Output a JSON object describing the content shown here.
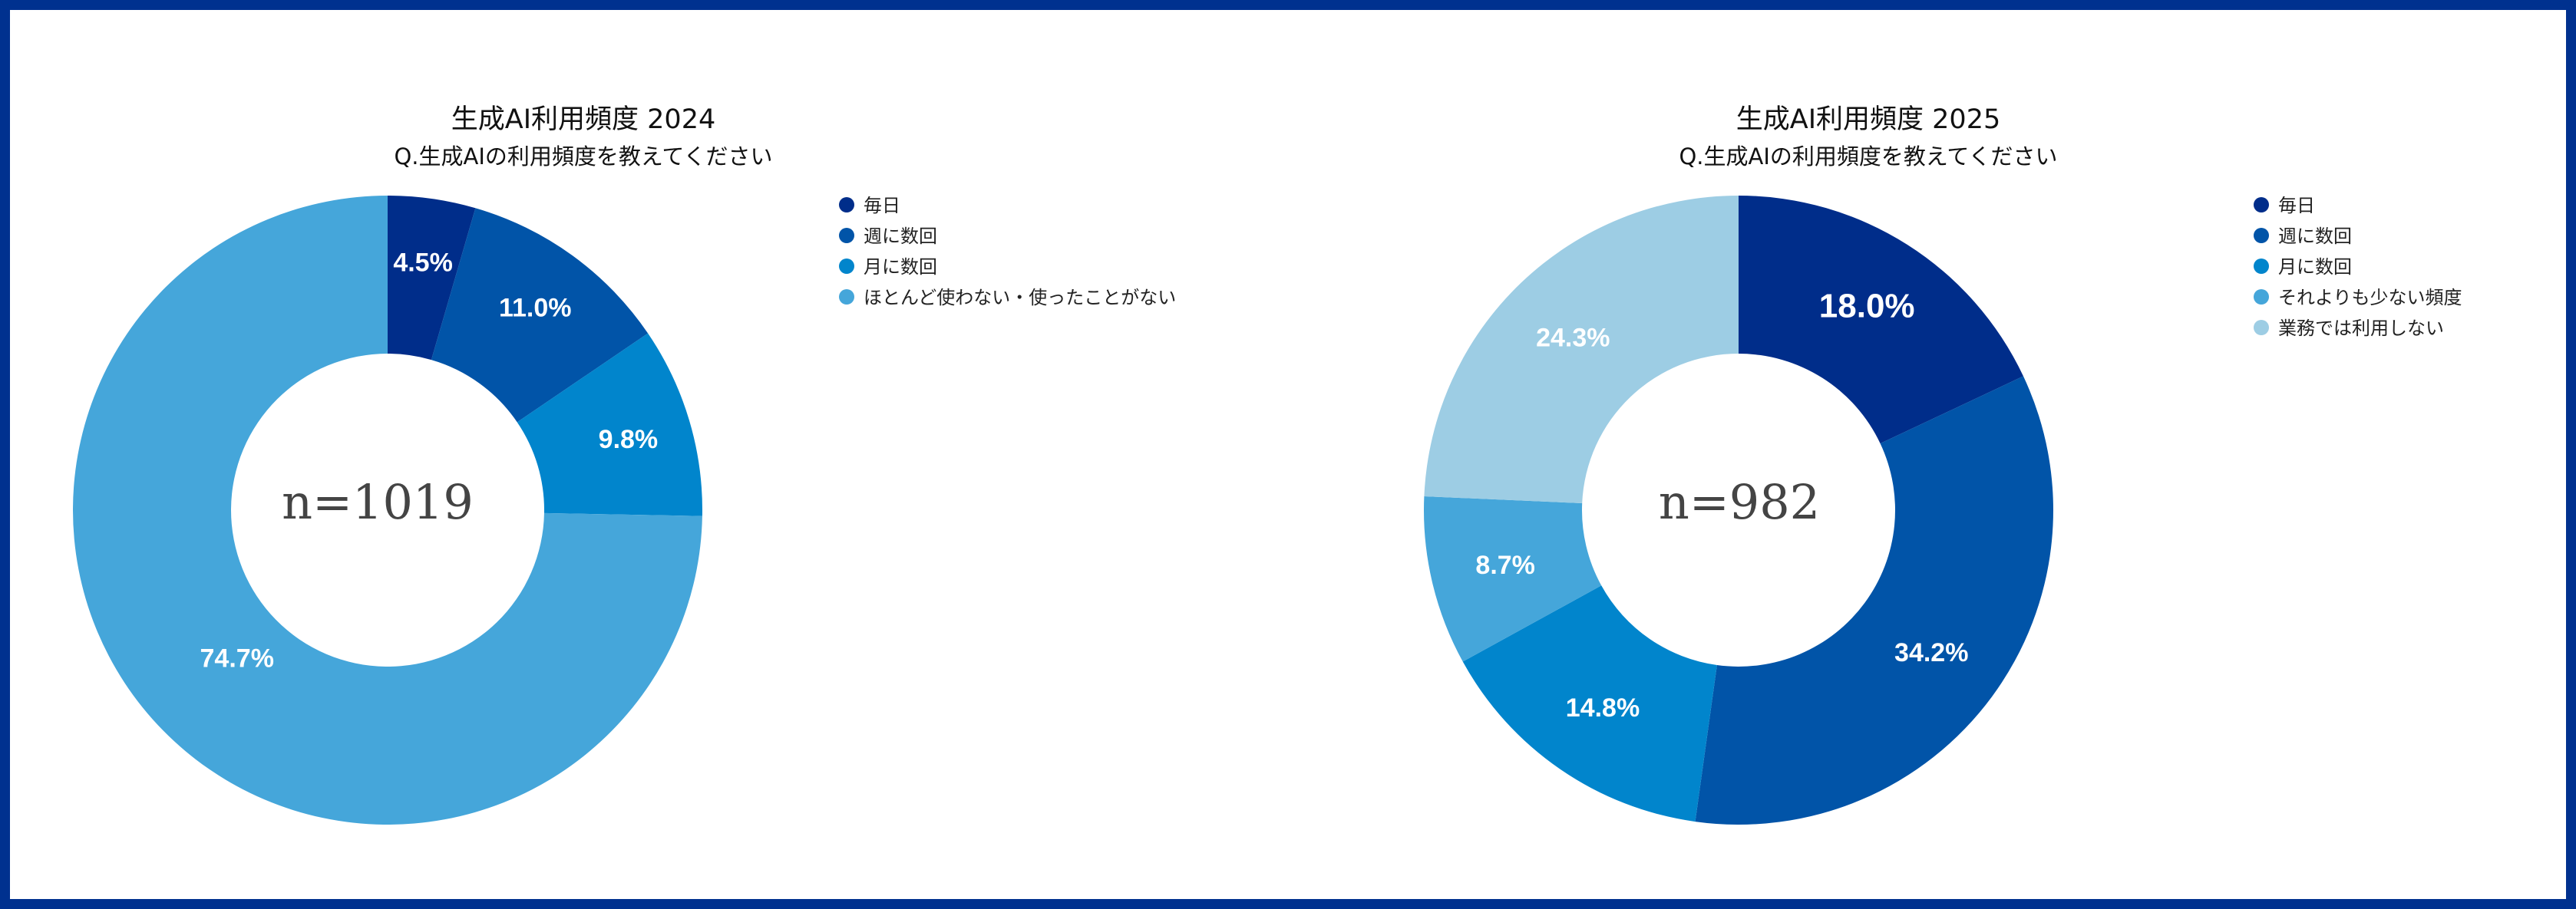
{
  "chart_data": [
    {
      "type": "pie",
      "donut": true,
      "title": "生成AI利用頻度 2024",
      "subtitle": "Q.生成AIの利用頻度を教えてください",
      "center_text": "n=1019",
      "categories": [
        "毎日",
        "週に数回",
        "月に数回",
        "ほとんど使わない・使ったことがない"
      ],
      "values": [
        4.5,
        11.0,
        9.8,
        74.7
      ],
      "value_labels": [
        "4.5%",
        "11.0%",
        "9.8%",
        "74.7%"
      ],
      "colors": [
        "#002d8a",
        "#0154a8",
        "#0185cc",
        "#45a6da"
      ],
      "legend_position": "right"
    },
    {
      "type": "pie",
      "donut": true,
      "title": "生成AI利用頻度 2025",
      "subtitle": "Q.生成AIの利用頻度を教えてください",
      "center_text": "n=982",
      "categories": [
        "毎日",
        "週に数回",
        "月に数回",
        "それよりも少ない頻度",
        "業務では利用しない"
      ],
      "values": [
        18.0,
        34.2,
        14.8,
        8.7,
        24.3
      ],
      "value_labels": [
        "18.0%",
        "34.2%",
        "14.8%",
        "8.7%",
        "24.3%"
      ],
      "colors": [
        "#002d8a",
        "#0154a8",
        "#0185cc",
        "#45a6da",
        "#9dcde4"
      ],
      "legend_position": "right"
    }
  ]
}
